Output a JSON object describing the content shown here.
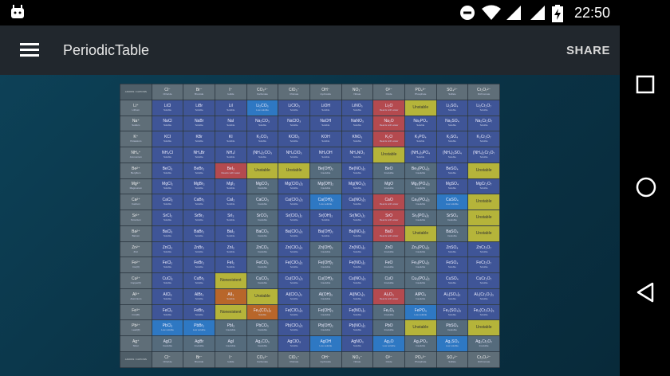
{
  "status": {
    "time": "22:50"
  },
  "appbar": {
    "title": "PeriodicTable",
    "share_label": "SHARE"
  },
  "colors": {
    "soluble": "#3f5597",
    "low_soluble": "#2e78c3",
    "insoluble": "#556b7c",
    "unstable": "#b5b43a",
    "reacts_with_water": "#b44a4f",
    "orange": "#b8662a",
    "appbar": "#21272d"
  },
  "table": {
    "corner_label": "ANIONS / CATIONS",
    "anions": [
      {
        "f": "Cl⁻",
        "n": "Chloride"
      },
      {
        "f": "Br⁻",
        "n": "Bromide"
      },
      {
        "f": "I⁻",
        "n": "Iodide"
      },
      {
        "f": "CO₃²⁻",
        "n": "Carbonate"
      },
      {
        "f": "ClO₃⁻",
        "n": "Chlorate"
      },
      {
        "f": "OH⁻",
        "n": "Hydroxide"
      },
      {
        "f": "NO₃⁻",
        "n": "Nitrate"
      },
      {
        "f": "O²⁻",
        "n": "Oxide"
      },
      {
        "f": "PO₄³⁻",
        "n": "Phosphate"
      },
      {
        "f": "SO₄²⁻",
        "n": "Sulfate"
      },
      {
        "f": "Cr₂O₇²⁻",
        "n": "Dichromate"
      }
    ],
    "rows": [
      {
        "f": "Li⁺",
        "n": "Lithium",
        "cells": [
          [
            "LiCl",
            "Soluble",
            "soluble"
          ],
          [
            "LiBr",
            "Soluble",
            "soluble"
          ],
          [
            "LiI",
            "Soluble",
            "soluble"
          ],
          [
            "Li₂CO₃",
            "Low soluble",
            "low"
          ],
          [
            "LiClO₃",
            "Soluble",
            "soluble"
          ],
          [
            "LiOH",
            "Soluble",
            "soluble"
          ],
          [
            "LiNO₃",
            "Soluble",
            "soluble"
          ],
          [
            "Li₂O",
            "Reacts with water",
            "reacts"
          ],
          [
            "Unstable",
            "",
            "unstable"
          ],
          [
            "Li₂SO₄",
            "Soluble",
            "soluble"
          ],
          [
            "Li₂Cr₂O₇",
            "Soluble",
            "soluble"
          ]
        ]
      },
      {
        "f": "Na⁺",
        "n": "Sodium",
        "cells": [
          [
            "NaCl",
            "Soluble",
            "soluble"
          ],
          [
            "NaBr",
            "Soluble",
            "soluble"
          ],
          [
            "NaI",
            "Soluble",
            "soluble"
          ],
          [
            "Na₂CO₃",
            "Soluble",
            "soluble"
          ],
          [
            "NaClO₃",
            "Soluble",
            "soluble"
          ],
          [
            "NaOH",
            "Soluble",
            "soluble"
          ],
          [
            "NaNO₃",
            "Soluble",
            "soluble"
          ],
          [
            "Na₂O",
            "Reacts with water",
            "reacts"
          ],
          [
            "Na₃PO₄",
            "Soluble",
            "soluble"
          ],
          [
            "Na₂SO₄",
            "Soluble",
            "soluble"
          ],
          [
            "Na₂Cr₂O₇",
            "Soluble",
            "soluble"
          ]
        ]
      },
      {
        "f": "K⁺",
        "n": "Potassium",
        "cells": [
          [
            "KCl",
            "Soluble",
            "soluble"
          ],
          [
            "KBr",
            "Soluble",
            "soluble"
          ],
          [
            "KI",
            "Soluble",
            "soluble"
          ],
          [
            "K₂CO₃",
            "Soluble",
            "soluble"
          ],
          [
            "KClO₃",
            "Soluble",
            "soluble"
          ],
          [
            "KOH",
            "Soluble",
            "soluble"
          ],
          [
            "KNO₃",
            "Soluble",
            "soluble"
          ],
          [
            "K₂O",
            "Reacts with water",
            "reacts"
          ],
          [
            "K₃PO₄",
            "Soluble",
            "soluble"
          ],
          [
            "K₂SO₄",
            "Soluble",
            "soluble"
          ],
          [
            "K₂Cr₂O₇",
            "Soluble",
            "soluble"
          ]
        ]
      },
      {
        "f": "NH₄⁺",
        "n": "Ammonium",
        "cells": [
          [
            "NH₄Cl",
            "Soluble",
            "soluble"
          ],
          [
            "NH₄Br",
            "Soluble",
            "soluble"
          ],
          [
            "NH₄I",
            "Soluble",
            "soluble"
          ],
          [
            "(NH₄)₂CO₃",
            "Soluble",
            "soluble"
          ],
          [
            "NH₄ClO₃",
            "Soluble",
            "soluble"
          ],
          [
            "NH₄OH",
            "Soluble",
            "soluble"
          ],
          [
            "NH₄NO₃",
            "Soluble",
            "soluble"
          ],
          [
            "Unstable",
            "",
            "unstable"
          ],
          [
            "(NH₄)₃PO₄",
            "Soluble",
            "soluble"
          ],
          [
            "(NH₄)₂SO₄",
            "Soluble",
            "soluble"
          ],
          [
            "(NH₄)₂Cr₂O₇",
            "Soluble",
            "soluble"
          ]
        ]
      },
      {
        "f": "Be²⁺",
        "n": "Beryllium",
        "cells": [
          [
            "BeCl₂",
            "Soluble",
            "soluble"
          ],
          [
            "BeBr₂",
            "Soluble",
            "soluble"
          ],
          [
            "BeI₂",
            "Reacts with water",
            "reacts"
          ],
          [
            "Unstable",
            "",
            "unstable"
          ],
          [
            "Unstable",
            "",
            "unstable"
          ],
          [
            "Be(OH)₂",
            "Insoluble",
            "insoluble"
          ],
          [
            "Be(NO₃)₂",
            "Soluble",
            "soluble"
          ],
          [
            "BeO",
            "Insoluble",
            "insoluble"
          ],
          [
            "Be₃(PO₄)₂",
            "Insoluble",
            "insoluble"
          ],
          [
            "BeSO₄",
            "Soluble",
            "soluble"
          ],
          [
            "Unstable",
            "",
            "unstable"
          ]
        ]
      },
      {
        "f": "Mg²⁺",
        "n": "Magnesium",
        "cells": [
          [
            "MgCl₂",
            "Soluble",
            "soluble"
          ],
          [
            "MgBr₂",
            "Soluble",
            "soluble"
          ],
          [
            "MgI₂",
            "Soluble",
            "soluble"
          ],
          [
            "MgCO₃",
            "Insoluble",
            "insoluble"
          ],
          [
            "Mg(ClO₃)₂",
            "Soluble",
            "soluble"
          ],
          [
            "Mg(OH)₂",
            "Insoluble",
            "insoluble"
          ],
          [
            "Mg(NO₃)₂",
            "Soluble",
            "soluble"
          ],
          [
            "MgO",
            "Insoluble",
            "insoluble"
          ],
          [
            "Mg₃(PO₄)₂",
            "Insoluble",
            "insoluble"
          ],
          [
            "MgSO₄",
            "Soluble",
            "soluble"
          ],
          [
            "MgCr₂O₇",
            "Soluble",
            "soluble"
          ]
        ]
      },
      {
        "f": "Ca²⁺",
        "n": "Calcium",
        "cells": [
          [
            "CaCl₂",
            "Soluble",
            "soluble"
          ],
          [
            "CaBr₂",
            "Soluble",
            "soluble"
          ],
          [
            "CaI₂",
            "Soluble",
            "soluble"
          ],
          [
            "CaCO₃",
            "Insoluble",
            "insoluble"
          ],
          [
            "Ca(ClO₃)₂",
            "Soluble",
            "soluble"
          ],
          [
            "Ca(OH)₂",
            "Low soluble",
            "low"
          ],
          [
            "Ca(NO₃)₂",
            "Soluble",
            "soluble"
          ],
          [
            "CaO",
            "Reacts with water",
            "reacts"
          ],
          [
            "Ca₃(PO₄)₂",
            "Insoluble",
            "insoluble"
          ],
          [
            "CaSO₄",
            "Low soluble",
            "low"
          ],
          [
            "Unstable",
            "",
            "unstable"
          ]
        ]
      },
      {
        "f": "Sr²⁺",
        "n": "Strontium",
        "cells": [
          [
            "SrCl₂",
            "Soluble",
            "soluble"
          ],
          [
            "SrBr₂",
            "Soluble",
            "soluble"
          ],
          [
            "SrI₂",
            "Soluble",
            "soluble"
          ],
          [
            "SrCO₃",
            "Insoluble",
            "insoluble"
          ],
          [
            "Sr(ClO₃)₂",
            "Soluble",
            "soluble"
          ],
          [
            "Sr(OH)₂",
            "Soluble",
            "soluble"
          ],
          [
            "Sr(NO₃)₂",
            "Soluble",
            "soluble"
          ],
          [
            "SrO",
            "Reacts with water",
            "reacts"
          ],
          [
            "Sr₃(PO₄)₂",
            "Insoluble",
            "insoluble"
          ],
          [
            "SrSO₄",
            "Insoluble",
            "insoluble"
          ],
          [
            "Unstable",
            "",
            "unstable"
          ]
        ]
      },
      {
        "f": "Ba²⁺",
        "n": "Barium",
        "cells": [
          [
            "BaCl₂",
            "Soluble",
            "soluble"
          ],
          [
            "BaBr₂",
            "Soluble",
            "soluble"
          ],
          [
            "BaI₂",
            "Soluble",
            "soluble"
          ],
          [
            "BaCO₃",
            "Insoluble",
            "insoluble"
          ],
          [
            "Ba(ClO₃)₂",
            "Soluble",
            "soluble"
          ],
          [
            "Ba(OH)₂",
            "Soluble",
            "soluble"
          ],
          [
            "Ba(NO₃)₂",
            "Soluble",
            "soluble"
          ],
          [
            "BaO",
            "Reacts with water",
            "reacts"
          ],
          [
            "Unstable",
            "",
            "unstable"
          ],
          [
            "BaSO₄",
            "Insoluble",
            "insoluble"
          ],
          [
            "Unstable",
            "",
            "unstable"
          ]
        ]
      },
      {
        "f": "Zn²⁺",
        "n": "Zinc",
        "cells": [
          [
            "ZnCl₂",
            "Soluble",
            "soluble"
          ],
          [
            "ZnBr₂",
            "Soluble",
            "soluble"
          ],
          [
            "ZnI₂",
            "Soluble",
            "soluble"
          ],
          [
            "ZnCO₃",
            "Insoluble",
            "insoluble"
          ],
          [
            "Zn(ClO₃)₂",
            "Soluble",
            "soluble"
          ],
          [
            "Zn(OH)₂",
            "Insoluble",
            "insoluble"
          ],
          [
            "Zn(NO₃)₂",
            "Soluble",
            "soluble"
          ],
          [
            "ZnO",
            "Insoluble",
            "insoluble"
          ],
          [
            "Zn₃(PO₄)₂",
            "Insoluble",
            "insoluble"
          ],
          [
            "ZnSO₄",
            "Soluble",
            "soluble"
          ],
          [
            "ZnCr₂O₇",
            "Soluble",
            "soluble"
          ]
        ]
      },
      {
        "f": "Fe²⁺",
        "n": "Iron(II)",
        "cells": [
          [
            "FeCl₂",
            "Soluble",
            "soluble"
          ],
          [
            "FeBr₂",
            "Soluble",
            "soluble"
          ],
          [
            "FeI₂",
            "Soluble",
            "soluble"
          ],
          [
            "FeCO₃",
            "Insoluble",
            "insoluble"
          ],
          [
            "Fe(ClO₃)₂",
            "Soluble",
            "soluble"
          ],
          [
            "Fe(OH)₂",
            "Insoluble",
            "insoluble"
          ],
          [
            "Fe(NO₃)₂",
            "Soluble",
            "soluble"
          ],
          [
            "FeO",
            "Insoluble",
            "insoluble"
          ],
          [
            "Fe₃(PO₄)₂",
            "Insoluble",
            "insoluble"
          ],
          [
            "FeSO₄",
            "Soluble",
            "soluble"
          ],
          [
            "FeCr₂O₇",
            "Soluble",
            "soluble"
          ]
        ]
      },
      {
        "f": "Cu²⁺",
        "n": "Copper(II)",
        "cells": [
          [
            "CuCl₂",
            "Soluble",
            "soluble"
          ],
          [
            "CuBr₂",
            "Soluble",
            "soluble"
          ],
          [
            "Nonexistent",
            "",
            "unstable"
          ],
          [
            "CuCO₃",
            "Insoluble",
            "insoluble"
          ],
          [
            "Cu(ClO₃)₂",
            "Soluble",
            "soluble"
          ],
          [
            "Cu(OH)₂",
            "Insoluble",
            "insoluble"
          ],
          [
            "Cu(NO₃)₂",
            "Soluble",
            "soluble"
          ],
          [
            "CuO",
            "Insoluble",
            "insoluble"
          ],
          [
            "Cu₃(PO₄)₂",
            "Insoluble",
            "insoluble"
          ],
          [
            "CuSO₄",
            "Soluble",
            "soluble"
          ],
          [
            "CuCr₂O₇",
            "Soluble",
            "soluble"
          ]
        ]
      },
      {
        "f": "Al³⁺",
        "n": "Aluminium",
        "cells": [
          [
            "AlCl₃",
            "Soluble",
            "soluble"
          ],
          [
            "AlBr₃",
            "Soluble",
            "soluble"
          ],
          [
            "AlI₃",
            "Soluble",
            "orange"
          ],
          [
            "Unstable",
            "",
            "unstable"
          ],
          [
            "Al(ClO₃)₃",
            "Soluble",
            "soluble"
          ],
          [
            "Al(OH)₃",
            "Insoluble",
            "insoluble"
          ],
          [
            "Al(NO₃)₃",
            "Soluble",
            "soluble"
          ],
          [
            "Al₂O₃",
            "Reacts with water",
            "reacts"
          ],
          [
            "AlPO₄",
            "Insoluble",
            "insoluble"
          ],
          [
            "Al₂(SO₄)₃",
            "Soluble",
            "soluble"
          ],
          [
            "Al₂(Cr₂O₇)₃",
            "Soluble",
            "soluble"
          ]
        ]
      },
      {
        "f": "Fe³⁺",
        "n": "Iron(III)",
        "cells": [
          [
            "FeCl₃",
            "Soluble",
            "soluble"
          ],
          [
            "FeBr₃",
            "Soluble",
            "soluble"
          ],
          [
            "Nonexistent",
            "",
            "unstable"
          ],
          [
            "Fe₂(CO₃)₃",
            "Soluble",
            "orange"
          ],
          [
            "Fe(ClO₃)₃",
            "Soluble",
            "soluble"
          ],
          [
            "Fe(OH)₃",
            "Insoluble",
            "insoluble"
          ],
          [
            "Fe(NO₃)₃",
            "Soluble",
            "soluble"
          ],
          [
            "Fe₂O₃",
            "Insoluble",
            "insoluble"
          ],
          [
            "FePO₄",
            "Low soluble",
            "low"
          ],
          [
            "Fe₂(SO₄)₃",
            "Soluble",
            "soluble"
          ],
          [
            "Fe₂(Cr₂O₇)₃",
            "Soluble",
            "soluble"
          ]
        ]
      },
      {
        "f": "Pb²⁺",
        "n": "Lead(II)",
        "cells": [
          [
            "PbCl₂",
            "Low soluble",
            "low"
          ],
          [
            "PbBr₂",
            "Low soluble",
            "low"
          ],
          [
            "PbI₂",
            "Insoluble",
            "insoluble"
          ],
          [
            "PbCO₃",
            "Insoluble",
            "insoluble"
          ],
          [
            "Pb(ClO₃)₂",
            "Soluble",
            "soluble"
          ],
          [
            "Pb(OH)₂",
            "Insoluble",
            "insoluble"
          ],
          [
            "Pb(NO₃)₂",
            "Soluble",
            "soluble"
          ],
          [
            "PbO",
            "Insoluble",
            "insoluble"
          ],
          [
            "Unstable",
            "",
            "unstable"
          ],
          [
            "PbSO₄",
            "Insoluble",
            "insoluble"
          ],
          [
            "Unstable",
            "",
            "unstable"
          ]
        ]
      },
      {
        "f": "Ag⁺",
        "n": "Silver",
        "cells": [
          [
            "AgCl",
            "Insoluble",
            "insoluble"
          ],
          [
            "AgBr",
            "Insoluble",
            "insoluble"
          ],
          [
            "AgI",
            "Insoluble",
            "insoluble"
          ],
          [
            "Ag₂CO₃",
            "Insoluble",
            "insoluble"
          ],
          [
            "AgClO₃",
            "Soluble",
            "soluble"
          ],
          [
            "AgOH",
            "Low soluble",
            "low"
          ],
          [
            "AgNO₃",
            "Soluble",
            "soluble"
          ],
          [
            "Ag₂O",
            "Low soluble",
            "low"
          ],
          [
            "Ag₃PO₄",
            "Insoluble",
            "insoluble"
          ],
          [
            "Ag₂SO₄",
            "Low soluble",
            "low"
          ],
          [
            "Ag₂Cr₂O₇",
            "Insoluble",
            "insoluble"
          ]
        ]
      }
    ]
  }
}
